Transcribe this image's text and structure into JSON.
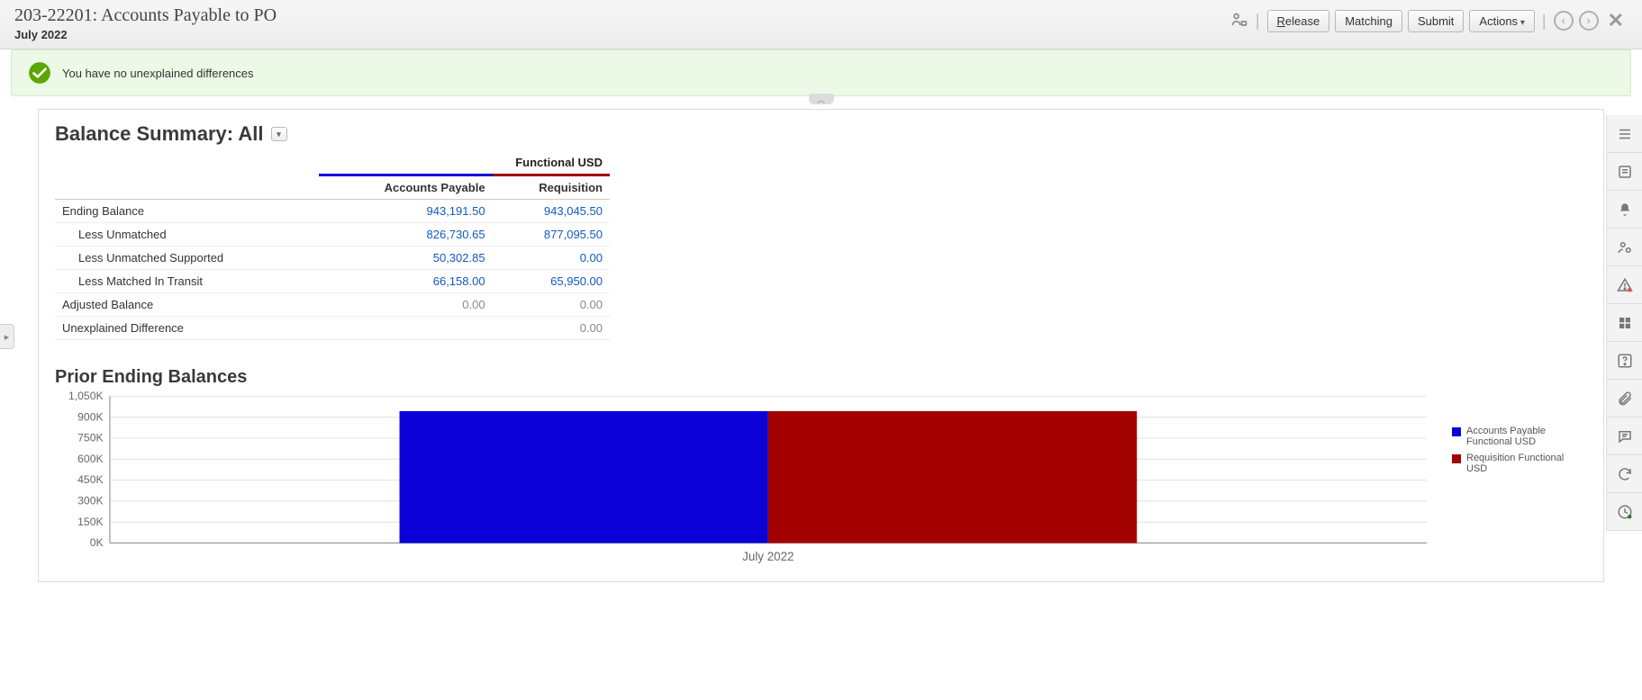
{
  "header": {
    "title": "203-22201: Accounts Payable to PO",
    "period": "July 2022",
    "buttons": {
      "release_prefix": "R",
      "release_rest": "elease",
      "matching": "Matching",
      "submit": "Submit",
      "actions": "Actions"
    }
  },
  "status": {
    "message": "You have no unexplained differences",
    "icon_color": "#5aa700",
    "bg": "#edf9e7"
  },
  "summary": {
    "title_prefix": "Balance Summary: ",
    "title_scope": "All",
    "currency_header": "Functional USD",
    "col1": "Accounts Payable",
    "col2": "Requisition",
    "col1_color": "#0b00d6",
    "col2_color": "#a30000",
    "rows": [
      {
        "label": "Ending Balance",
        "indent": 0,
        "v1": "943,191.50",
        "v2": "943,045.50",
        "style": "link"
      },
      {
        "label": "Less Unmatched",
        "indent": 1,
        "v1": "826,730.65",
        "v2": "877,095.50",
        "style": "link"
      },
      {
        "label": "Less Unmatched Supported",
        "indent": 1,
        "v1": "50,302.85",
        "v2": "0.00",
        "style": "link"
      },
      {
        "label": "Less Matched In Transit",
        "indent": 1,
        "v1": "66,158.00",
        "v2": "65,950.00",
        "style": "link"
      },
      {
        "label": "Adjusted Balance",
        "indent": 0,
        "v1": "0.00",
        "v2": "0.00",
        "style": "muted"
      },
      {
        "label": "Unexplained Difference",
        "indent": 0,
        "v1": "",
        "v2": "0.00",
        "style": "muted"
      }
    ]
  },
  "chart": {
    "title": "Prior Ending Balances",
    "type": "bar",
    "categories": [
      "July 2022"
    ],
    "y_ticks": [
      0,
      150,
      300,
      450,
      600,
      750,
      900,
      1050
    ],
    "y_tick_labels": [
      "0K",
      "150K",
      "300K",
      "450K",
      "600K",
      "750K",
      "900K",
      "1,050K"
    ],
    "ylim": [
      0,
      1050
    ],
    "series": [
      {
        "name": "Accounts Payable Functional USD",
        "color": "#0b00d6",
        "value": 943.19
      },
      {
        "name": "Requisition Functional USD",
        "color": "#a30000",
        "value": 943.05
      }
    ],
    "grid_color": "#e6e6e6",
    "axis_color": "#999999",
    "tick_font_size": 10
  },
  "right_rail": {
    "items": [
      {
        "name": "list-icon"
      },
      {
        "name": "properties-icon"
      },
      {
        "name": "bell-icon"
      },
      {
        "name": "user-settings-icon"
      },
      {
        "name": "alert-icon"
      },
      {
        "name": "grid-icon"
      },
      {
        "name": "help-icon"
      },
      {
        "name": "attachment-icon"
      },
      {
        "name": "comment-icon"
      },
      {
        "name": "refresh-icon"
      },
      {
        "name": "clock-icon"
      }
    ]
  }
}
